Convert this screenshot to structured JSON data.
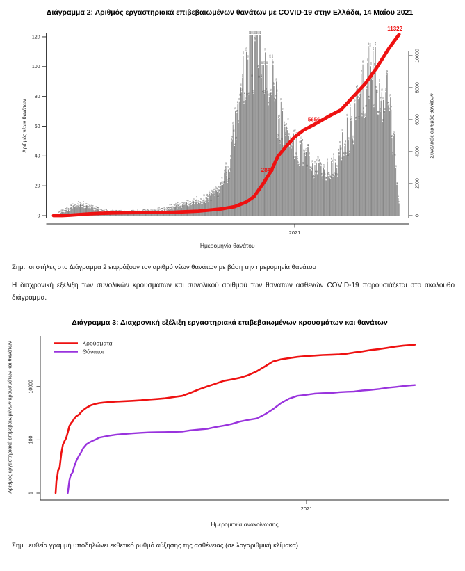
{
  "document": {
    "language": "el",
    "background": "#ffffff",
    "text_color": "#1a1a1a"
  },
  "notes": {
    "chart2_note": "Σημ.: οι στήλες στο Διάγραμμα 2 εκφράζουν τον αριθμό νέων θανάτων με βάση την ημερομηνία θανάτου",
    "paragraph": "Η διαχρονική εξέλιξη των συνολικών κρουσμάτων και συνολικού αριθμού των θανάτων ασθενών COVID-19 παρουσιάζεται στο ακόλουθο διάγραμμα.",
    "chart3_note": "Σημ.: ευθεία γραμμή υποδηλώνει εκθετικό ρυθμό αύξησης της ασθένειας (σε λογαριθμική κλίμακα)"
  },
  "chart_data": [
    {
      "id": "diagramma-2",
      "type": "combo-bar-line",
      "title": "Διάγραμμα 2: Αριθμός εργαστηριακά επιβεβαιωμένων θανάτων με COVID-19 στην Ελλάδα, 14 Μαΐου 2021",
      "xlabel": "Ημερομηνία θανάτου",
      "ylabel_left": "Αριθμός νέων θανάτων",
      "ylabel_right": "Συνολικός αριθμός θανάτων",
      "x_tick_labels": [
        "2021"
      ],
      "x_range": {
        "start": "2020-03-01",
        "end": "2021-05-14",
        "days": 440,
        "jan1_2021_day": 306
      },
      "left_axis": {
        "ticks": [
          0,
          20,
          40,
          60,
          80,
          100,
          120
        ],
        "lim": [
          0,
          125
        ]
      },
      "right_axis": {
        "ticks": [
          0,
          2000,
          4000,
          6000,
          8000,
          10000
        ],
        "lim": [
          0,
          11500
        ]
      },
      "bar_color": "#838383",
      "bar_label_color": "#474747",
      "line_color": "#ee1111",
      "grid": false,
      "bars_daily_new_deaths_envelope": [
        [
          0,
          0
        ],
        [
          10,
          2
        ],
        [
          20,
          4
        ],
        [
          32,
          8
        ],
        [
          42,
          6
        ],
        [
          55,
          4
        ],
        [
          70,
          2
        ],
        [
          92,
          2
        ],
        [
          110,
          2
        ],
        [
          130,
          3
        ],
        [
          150,
          5
        ],
        [
          165,
          7
        ],
        [
          180,
          9
        ],
        [
          195,
          11
        ],
        [
          210,
          16
        ],
        [
          222,
          30
        ],
        [
          232,
          60
        ],
        [
          242,
          90
        ],
        [
          252,
          112
        ],
        [
          262,
          110
        ],
        [
          272,
          95
        ],
        [
          282,
          75
        ],
        [
          292,
          60
        ],
        [
          302,
          50
        ],
        [
          312,
          44
        ],
        [
          322,
          38
        ],
        [
          332,
          32
        ],
        [
          342,
          29
        ],
        [
          352,
          30
        ],
        [
          360,
          34
        ],
        [
          370,
          48
        ],
        [
          380,
          62
        ],
        [
          390,
          76
        ],
        [
          398,
          88
        ],
        [
          406,
          96
        ],
        [
          414,
          93
        ],
        [
          421,
          82
        ],
        [
          427,
          68
        ],
        [
          432,
          50
        ],
        [
          436,
          28
        ],
        [
          439,
          10
        ]
      ],
      "cumulative_deaths": [
        [
          0,
          0
        ],
        [
          11,
          1
        ],
        [
          20,
          22
        ],
        [
          31,
          60
        ],
        [
          45,
          110
        ],
        [
          61,
          145
        ],
        [
          75,
          165
        ],
        [
          92,
          180
        ],
        [
          122,
          195
        ],
        [
          153,
          212
        ],
        [
          184,
          280
        ],
        [
          214,
          420
        ],
        [
          230,
          560
        ],
        [
          245,
          850
        ],
        [
          255,
          1200
        ],
        [
          265,
          1900
        ],
        [
          277,
          2844
        ],
        [
          285,
          3700
        ],
        [
          295,
          4300
        ],
        [
          306,
          4900
        ],
        [
          318,
          5350
        ],
        [
          330,
          5656
        ],
        [
          337,
          5850
        ],
        [
          351,
          6250
        ],
        [
          365,
          6600
        ],
        [
          380,
          7400
        ],
        [
          396,
          8250
        ],
        [
          410,
          9200
        ],
        [
          426,
          10450
        ],
        [
          439,
          11322
        ]
      ],
      "annotations": [
        {
          "text": "2844",
          "day": 277,
          "value": 2844,
          "position": "on-line"
        },
        {
          "text": "5656",
          "day": 330,
          "value": 5656,
          "position": "above-line"
        },
        {
          "text": "11322",
          "day": 439,
          "value": 11322,
          "position": "above-line-end"
        }
      ]
    },
    {
      "id": "diagramma-3",
      "type": "line",
      "title": "Διάγραμμα 3: Διαχρονική εξέλιξη εργαστηριακά επιβεβαιωμένων κρουσμάτων και θανάτων",
      "xlabel": "Ημερομηνία ανακοίνωσης",
      "ylabel": "Αριθμός εργαστηριακά επιβεβαιωμένων κρουσμάτων και θανάτων",
      "x_tick_labels": [
        "2021"
      ],
      "x_range": {
        "start": "2020-02-26",
        "end": "2021-05-14",
        "days": 443,
        "jan1_2021_day": 310
      },
      "y_scale": "log10",
      "y_ticks": [
        1,
        100,
        10000
      ],
      "ylim": [
        1,
        1000000
      ],
      "grid": false,
      "legend_position": "top-left",
      "series": [
        {
          "name": "Κρούσματα",
          "color": "#ee1111",
          "points": [
            [
              0,
              1
            ],
            [
              1,
              3
            ],
            [
              2,
              4
            ],
            [
              3,
              7
            ],
            [
              5,
              9
            ],
            [
              7,
              31
            ],
            [
              9,
              66
            ],
            [
              11,
              89
            ],
            [
              13,
              117
            ],
            [
              15,
              190
            ],
            [
              17,
              331
            ],
            [
              19,
              418
            ],
            [
              21,
              495
            ],
            [
              23,
              624
            ],
            [
              25,
              743
            ],
            [
              27,
              821
            ],
            [
              29,
              892
            ],
            [
              31,
              1061
            ],
            [
              34,
              1314
            ],
            [
              39,
              1673
            ],
            [
              44,
              2011
            ],
            [
              49,
              2235
            ],
            [
              54,
              2401
            ],
            [
              59,
              2506
            ],
            [
              64,
              2591
            ],
            [
              74,
              2716
            ],
            [
              84,
              2810
            ],
            [
              95,
              2917
            ],
            [
              105,
              3049
            ],
            [
              115,
              3256
            ],
            [
              125,
              3409
            ],
            [
              135,
              3622
            ],
            [
              145,
              4012
            ],
            [
              156,
              4477
            ],
            [
              166,
              5749
            ],
            [
              176,
              7684
            ],
            [
              187,
              10134
            ],
            [
              197,
              12734
            ],
            [
              207,
              16286
            ],
            [
              217,
              18475
            ],
            [
              227,
              21381
            ],
            [
              237,
              26469
            ],
            [
              248,
              37196
            ],
            [
              258,
              56698
            ],
            [
              268,
              87812
            ],
            [
              278,
              105271
            ],
            [
              288,
              116721
            ],
            [
              298,
              129695
            ],
            [
              309,
              138850
            ],
            [
              319,
              144738
            ],
            [
              329,
              151980
            ],
            [
              340,
              155678
            ],
            [
              350,
              161184
            ],
            [
              360,
              172824
            ],
            [
              368,
              190235
            ],
            [
              378,
              208073
            ],
            [
              388,
              232972
            ],
            [
              399,
              255704
            ],
            [
              409,
              282096
            ],
            [
              419,
              316879
            ],
            [
              429,
              344917
            ],
            [
              436,
              358721
            ],
            [
              443,
              372881
            ]
          ]
        },
        {
          "name": "Θάνατοι",
          "color": "#9933dd",
          "points": [
            [
              15,
              1
            ],
            [
              17,
              3
            ],
            [
              18,
              4
            ],
            [
              19,
              5
            ],
            [
              21,
              6
            ],
            [
              23,
              10
            ],
            [
              25,
              15
            ],
            [
              27,
              20
            ],
            [
              29,
              26
            ],
            [
              31,
              32
            ],
            [
              34,
              49
            ],
            [
              38,
              68
            ],
            [
              42,
              81
            ],
            [
              46,
              93
            ],
            [
              50,
              105
            ],
            [
              54,
              121
            ],
            [
              59,
              130
            ],
            [
              64,
              140
            ],
            [
              74,
              155
            ],
            [
              84,
              166
            ],
            [
              95,
              175
            ],
            [
              105,
              183
            ],
            [
              115,
              190
            ],
            [
              125,
              192
            ],
            [
              135,
              195
            ],
            [
              145,
              199
            ],
            [
              156,
              203
            ],
            [
              166,
              226
            ],
            [
              176,
              242
            ],
            [
              187,
              259
            ],
            [
              197,
              300
            ],
            [
              207,
              338
            ],
            [
              217,
              391
            ],
            [
              227,
              482
            ],
            [
              237,
              559
            ],
            [
              248,
              635
            ],
            [
              258,
              909
            ],
            [
              268,
              1419
            ],
            [
              278,
              2406
            ],
            [
              288,
              3540
            ],
            [
              298,
              4457
            ],
            [
              309,
              4881
            ],
            [
              319,
              5421
            ],
            [
              329,
              5646
            ],
            [
              340,
              5764
            ],
            [
              350,
              6152
            ],
            [
              360,
              6371
            ],
            [
              368,
              6504
            ],
            [
              378,
              7091
            ],
            [
              388,
              7462
            ],
            [
              399,
              8093
            ],
            [
              409,
              8961
            ],
            [
              419,
              9627
            ],
            [
              429,
              10453
            ],
            [
              436,
              10967
            ],
            [
              443,
              11322
            ]
          ]
        }
      ]
    }
  ]
}
